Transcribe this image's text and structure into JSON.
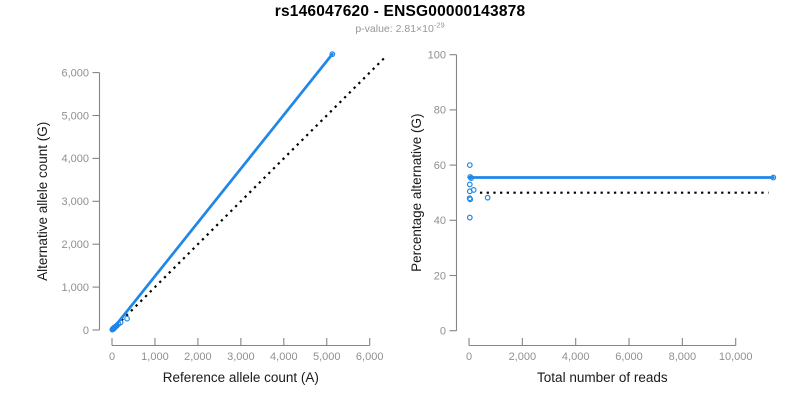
{
  "header": {
    "title": "rs146047620 - ENSG00000143878",
    "pvalue_label": "p-value: ",
    "pvalue_base": "2.81×10",
    "pvalue_exponent": "-29"
  },
  "colors": {
    "accent_blue": "#1E88E8",
    "reference_black": "#000000",
    "axis_gray": "#858585",
    "tick_label_gray": "#909090",
    "axis_title_color": "#1a1a1a",
    "subtitle_gray": "#979797",
    "background": "#ffffff"
  },
  "chart_data": [
    {
      "type": "scatter",
      "panel": "left",
      "xlabel": "Reference allele count (A)",
      "ylabel": "Alternative allele count (G)",
      "xlim": [
        0,
        6430
      ],
      "ylim": [
        0,
        6430
      ],
      "xticks": [
        0,
        1000,
        2000,
        3000,
        4000,
        5000,
        6000
      ],
      "xtick_labels": [
        "0",
        "1,000",
        "2,000",
        "3,000",
        "4,000",
        "5,000",
        "6,000"
      ],
      "yticks": [
        0,
        1000,
        2000,
        3000,
        4000,
        5000,
        6000
      ],
      "ytick_labels": [
        "0",
        "1,000",
        "2,000",
        "3,000",
        "4,000",
        "5,000",
        "6,000"
      ],
      "grid": false,
      "legend": "none",
      "points": [
        [
          8,
          10
        ],
        [
          15,
          20
        ],
        [
          22,
          18
        ],
        [
          30,
          34
        ],
        [
          38,
          30
        ],
        [
          45,
          52
        ],
        [
          60,
          58
        ],
        [
          72,
          66
        ],
        [
          90,
          85
        ],
        [
          110,
          100
        ],
        [
          150,
          140
        ],
        [
          200,
          175
        ],
        [
          350,
          265
        ],
        [
          5130,
          6430
        ]
      ],
      "fit_line": {
        "style": "solid",
        "color_key": "accent_blue",
        "x": [
          0,
          5130
        ],
        "y": [
          0,
          6430
        ],
        "meaning": "fitted allelic ratio"
      },
      "identity_line": {
        "style": "dotted",
        "color_key": "reference_black",
        "x": [
          0,
          6390
        ],
        "y": [
          0,
          6390
        ],
        "meaning": "identity y = x"
      }
    },
    {
      "type": "scatter",
      "panel": "right",
      "xlabel": "Total number of reads",
      "ylabel": "Percentage alternative (G)",
      "xlim": [
        0,
        11900
      ],
      "ylim": [
        0,
        100
      ],
      "xticks": [
        0,
        2000,
        4000,
        6000,
        8000,
        10000
      ],
      "xtick_labels": [
        "0",
        "2,000",
        "4,000",
        "6,000",
        "8,000",
        "10,000"
      ],
      "yticks": [
        0,
        20,
        40,
        60,
        80,
        100
      ],
      "ytick_labels": [
        "0",
        "20",
        "40",
        "60",
        "80",
        "100"
      ],
      "grid": false,
      "legend": "none",
      "points": [
        [
          30,
          60
        ],
        [
          45,
          55.7
        ],
        [
          85,
          55.3
        ],
        [
          30,
          53
        ],
        [
          30,
          50.5
        ],
        [
          175,
          51
        ],
        [
          25,
          48
        ],
        [
          45,
          47.6
        ],
        [
          700,
          48.2
        ],
        [
          30,
          41
        ],
        [
          11410,
          55.5
        ]
      ],
      "fit_line": {
        "style": "solid",
        "color_key": "accent_blue",
        "x": [
          0,
          11410
        ],
        "y": [
          55.5,
          55.5
        ],
        "meaning": "fitted percentage 55.5%"
      },
      "identity_line": {
        "style": "dotted",
        "color_key": "reference_black",
        "x": [
          410,
          11230
        ],
        "y": [
          50,
          50
        ],
        "meaning": "50% reference line"
      }
    }
  ]
}
